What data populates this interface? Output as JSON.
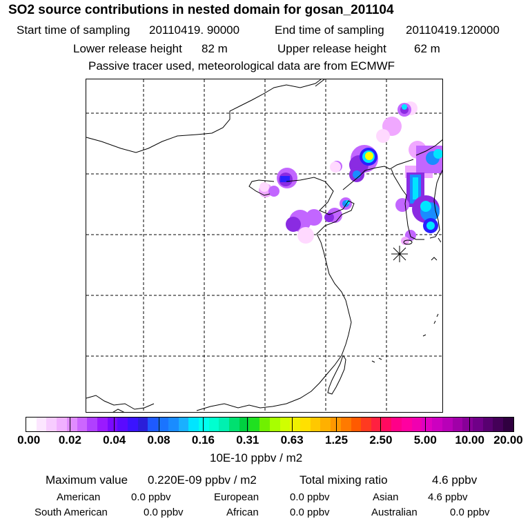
{
  "header": {
    "title": "SO2 source contributions in nested domain for gosan_201104",
    "start_label": "Start time of sampling",
    "start_value": "20110419. 90000",
    "end_label": "End time of sampling",
    "end_value": "20110419.120000",
    "lower_label": "Lower release height",
    "lower_value": "82 m",
    "upper_label": "Upper release height",
    "upper_value": "62 m",
    "tracer_note": "Passive tracer used, meteorological data are from ECMWF"
  },
  "map": {
    "receptor_marker": "asterisk-icon",
    "plume_colors": [
      "#ffd9ff",
      "#f0a8ff",
      "#c266ff",
      "#8a2be2",
      "#2a1fff",
      "#1a8cff",
      "#00e5ff",
      "#ffff00"
    ]
  },
  "colorbar": {
    "unit": "10E-10 ppbv / m2",
    "tick_labels": [
      "0.00",
      "0.02",
      "0.04",
      "0.08",
      "0.16",
      "0.31",
      "0.63",
      "1.25",
      "2.50",
      "5.00",
      "10.00",
      "20.00"
    ],
    "colors": [
      "#ffffff",
      "#fce6ff",
      "#f7ccff",
      "#f0b0ff",
      "#e08cff",
      "#cc66ff",
      "#b040ff",
      "#9a1aff",
      "#7a0aff",
      "#5a0aff",
      "#3a14ff",
      "#2a1fd9",
      "#1e5aff",
      "#1a74ff",
      "#1a8cff",
      "#1ab0ff",
      "#00e5ff",
      "#00ffee",
      "#00ffd0",
      "#00f0b0",
      "#00e070",
      "#00d040",
      "#20e020",
      "#70f000",
      "#a8ff00",
      "#d0ff00",
      "#f0f000",
      "#ffe000",
      "#ffc800",
      "#ffb000",
      "#ff9800",
      "#ff7a00",
      "#ff5a00",
      "#ff3a20",
      "#ff2040",
      "#ff0a60",
      "#ff0088",
      "#ff00a0",
      "#f000b0",
      "#e000c0",
      "#cc00c0",
      "#b800b8",
      "#a000a8",
      "#880098",
      "#700088",
      "#580070",
      "#440058",
      "#300040"
    ]
  },
  "summary": {
    "max_label": "Maximum value",
    "max_value": "0.220E-09 ppbv / m2",
    "total_label": "Total mixing ratio",
    "total_value": "4.6 ppbv",
    "regions": [
      {
        "name": "American",
        "value": "0.0 ppbv"
      },
      {
        "name": "European",
        "value": "0.0 ppbv"
      },
      {
        "name": "Asian",
        "value": "4.6 ppbv"
      },
      {
        "name": "South American",
        "value": "0.0 ppbv"
      },
      {
        "name": "African",
        "value": "0.0 ppbv"
      },
      {
        "name": "Australian",
        "value": "0.0 ppbv"
      }
    ]
  }
}
